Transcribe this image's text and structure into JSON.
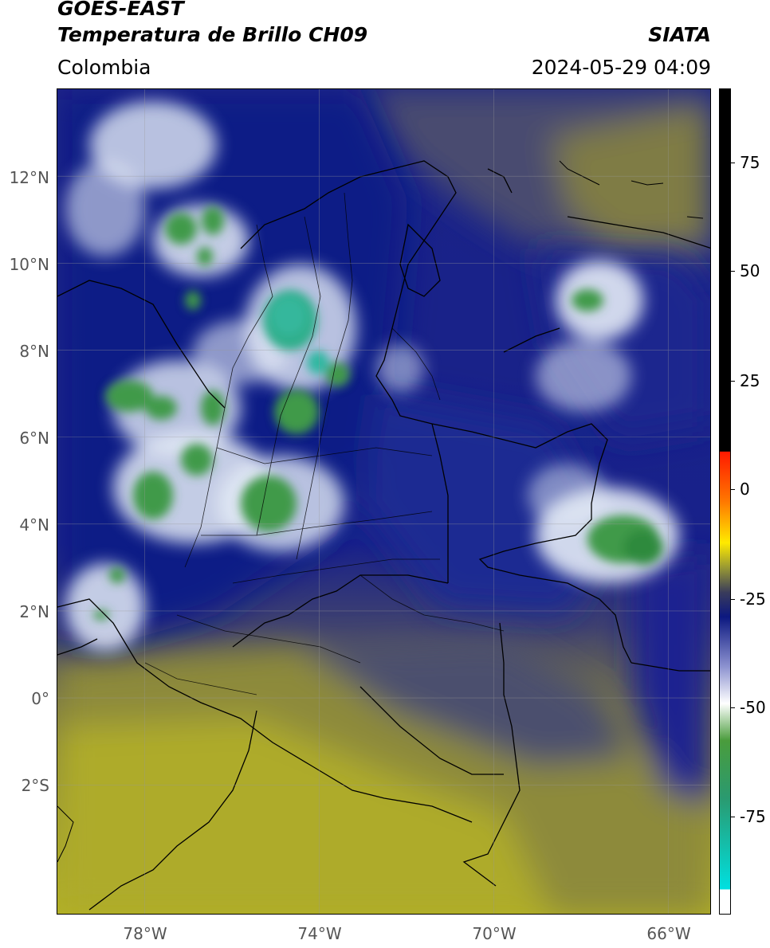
{
  "header": {
    "satellite": "GOES-EAST",
    "product": "Temperatura de Brillo CH09",
    "region": "Colombia",
    "agency": "SIATA",
    "datetime": "2024-05-29 04:09"
  },
  "map": {
    "lon_range": [
      -80,
      -65
    ],
    "lat_range": [
      -5,
      14
    ],
    "lat_ticks": [
      "12°N",
      "10°N",
      "8°N",
      "6°N",
      "4°N",
      "2°N",
      "0°",
      "2°S"
    ],
    "lon_ticks": [
      "78°W",
      "74°W",
      "70°W",
      "66°W"
    ],
    "colors": {
      "cold_cloud_green": "#3f9a49",
      "cyan_cloud": "#2fb7a0",
      "white_cloud": "#e8eef7",
      "blue_moist": "#1c2a8f",
      "navy": "#0c1880",
      "dry_olive": "#8f8c3a",
      "dry_yellow": "#b3b024",
      "gray_mid": "#55577a"
    }
  },
  "colorbar": {
    "ticks": [
      "75",
      "50",
      "25",
      "0",
      "-25",
      "-50",
      "-75"
    ],
    "tick_values": [
      75,
      50,
      25,
      0,
      -25,
      -50,
      -75
    ],
    "range": [
      -97,
      90
    ]
  }
}
